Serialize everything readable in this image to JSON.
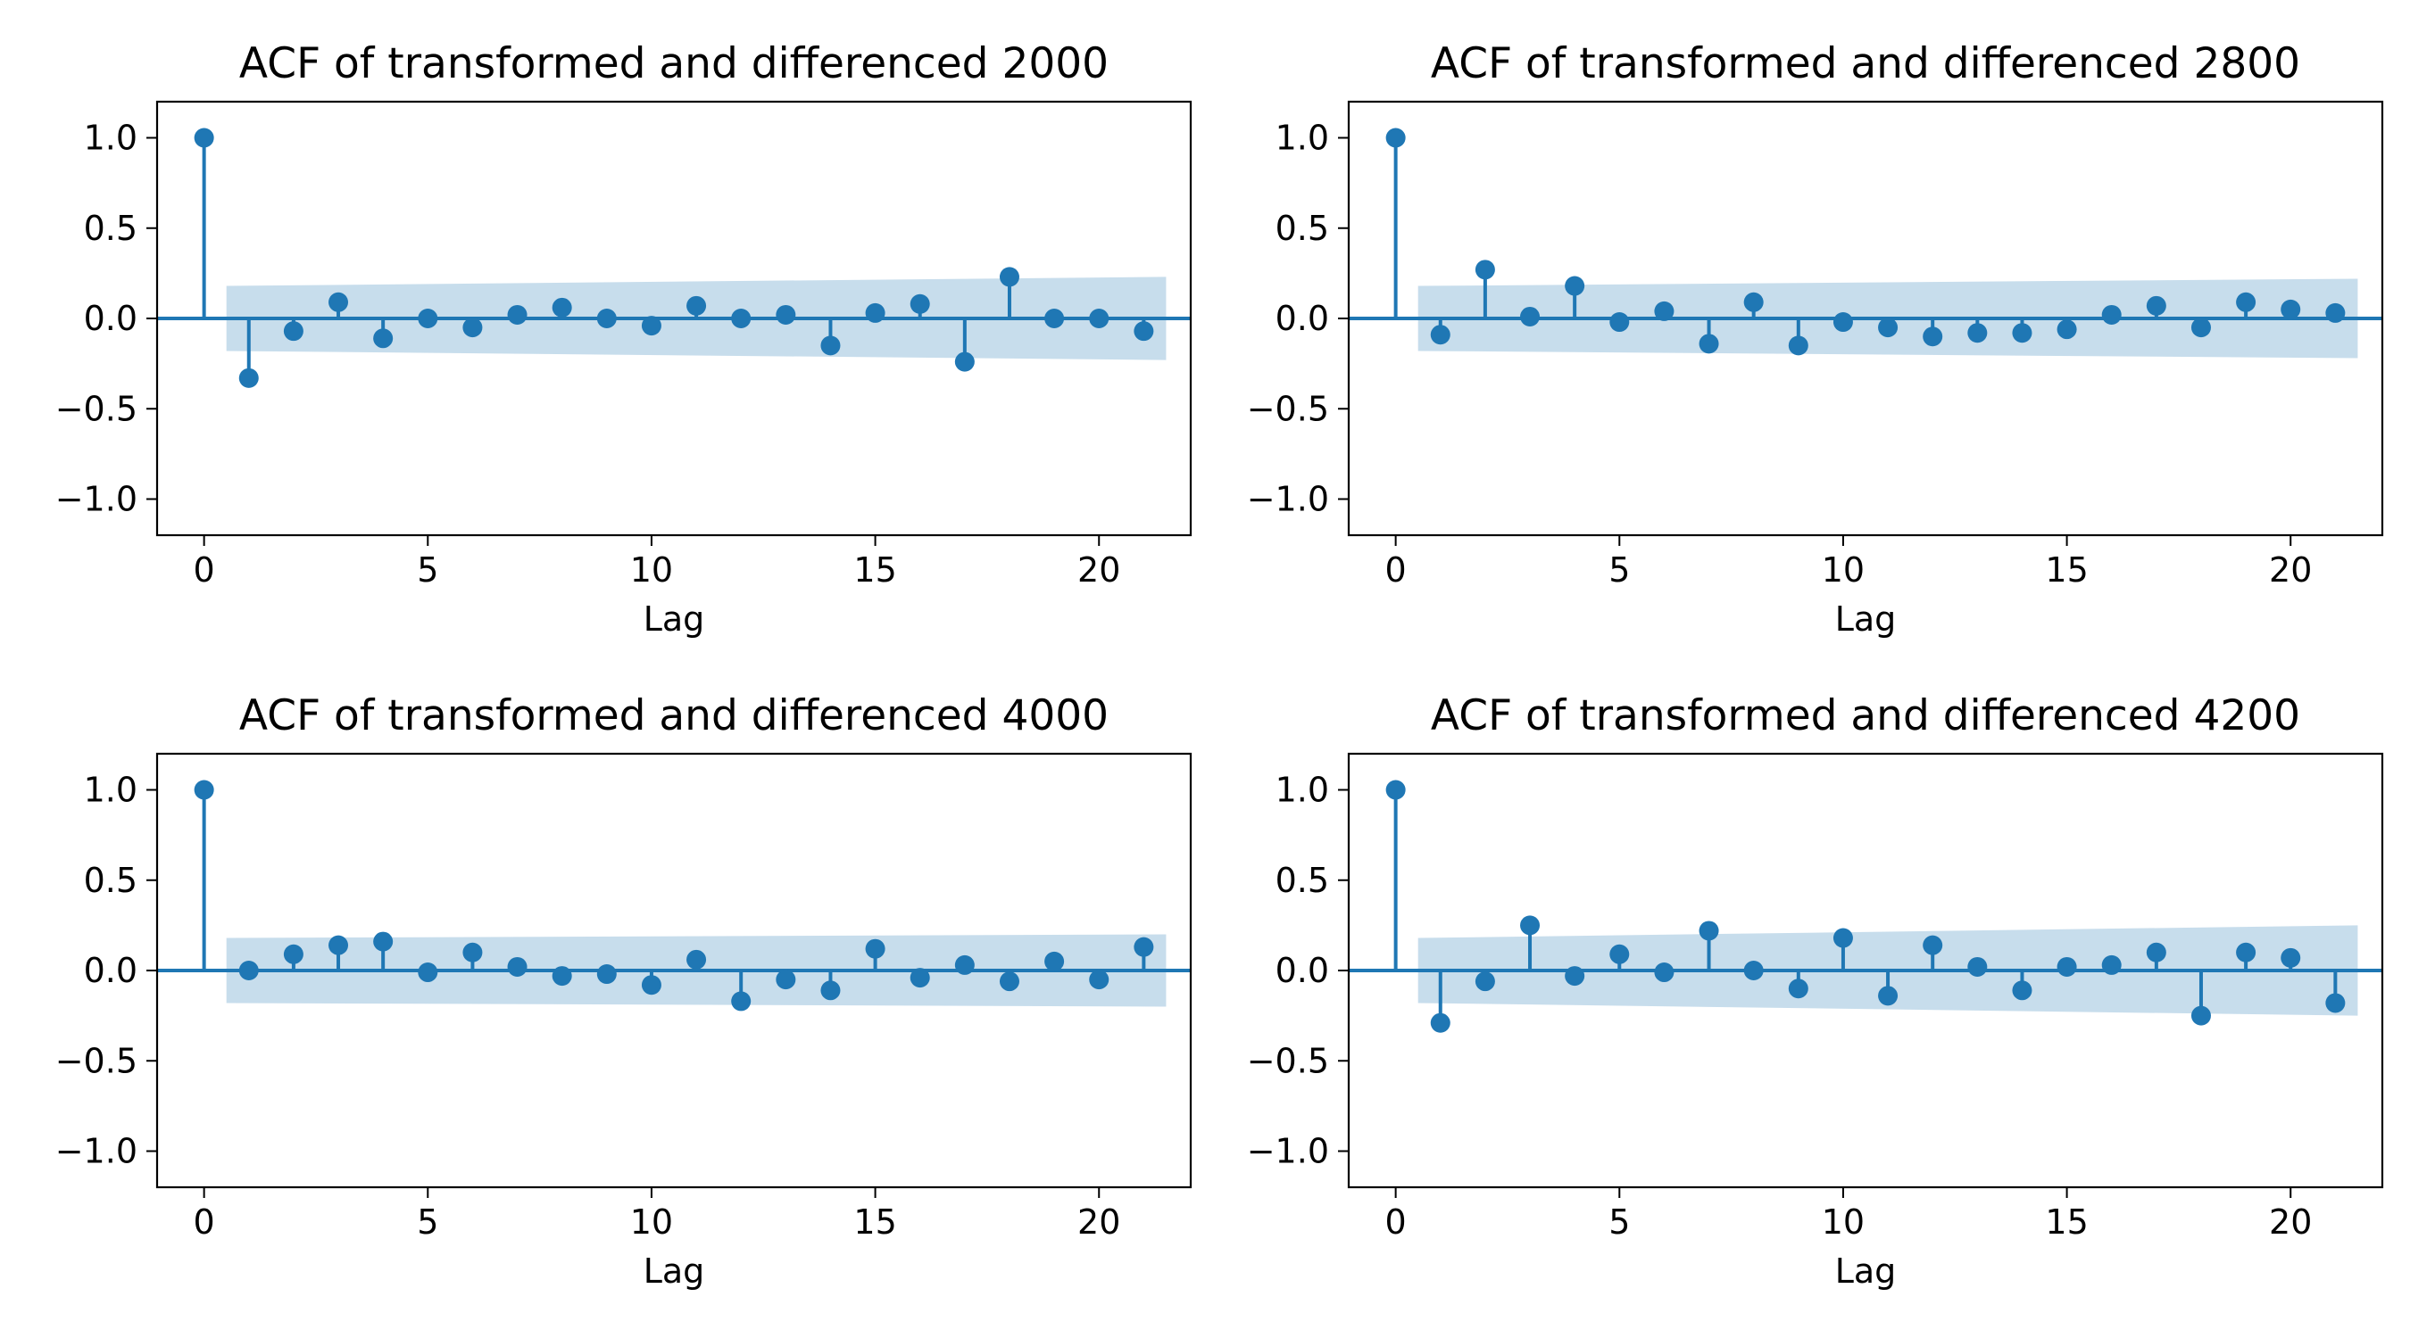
{
  "figure": {
    "colors": {
      "series": "#1f77b4",
      "confidence_band": "#1f77b4",
      "axes": "#000000",
      "background": "#ffffff"
    }
  },
  "chart_data": [
    {
      "type": "stem",
      "title": "ACF of transformed and differenced 2000",
      "xlabel": "Lag",
      "ylabel": "",
      "xlim": [
        -1.05,
        22.05
      ],
      "ylim": [
        -1.2,
        1.2
      ],
      "xticks": [
        0,
        5,
        10,
        15,
        20
      ],
      "yticks": [
        -1.0,
        -0.5,
        0.0,
        0.5,
        1.0
      ],
      "ytick_labels": [
        "−1.0",
        "−0.5",
        "0.0",
        "0.5",
        "1.0"
      ],
      "grid": false,
      "lags": [
        0,
        1,
        2,
        3,
        4,
        5,
        6,
        7,
        8,
        9,
        10,
        11,
        12,
        13,
        14,
        15,
        16,
        17,
        18,
        19,
        20,
        21
      ],
      "values": [
        1.0,
        -0.33,
        -0.07,
        0.09,
        -0.11,
        0.0,
        -0.05,
        0.02,
        0.06,
        0.0,
        -0.04,
        0.07,
        0.0,
        0.02,
        -0.15,
        0.03,
        0.08,
        -0.24,
        0.23,
        0.0,
        0.0,
        -0.07
      ],
      "confidence_band": {
        "from_lag": 0.5,
        "to_lag": 21.5,
        "half_width_start": 0.18,
        "half_width_end": 0.23
      }
    },
    {
      "type": "stem",
      "title": "ACF of transformed and differenced 2800",
      "xlabel": "Lag",
      "ylabel": "",
      "xlim": [
        -1.05,
        22.05
      ],
      "ylim": [
        -1.2,
        1.2
      ],
      "xticks": [
        0,
        5,
        10,
        15,
        20
      ],
      "yticks": [
        -1.0,
        -0.5,
        0.0,
        0.5,
        1.0
      ],
      "ytick_labels": [
        "−1.0",
        "−0.5",
        "0.0",
        "0.5",
        "1.0"
      ],
      "grid": false,
      "lags": [
        0,
        1,
        2,
        3,
        4,
        5,
        6,
        7,
        8,
        9,
        10,
        11,
        12,
        13,
        14,
        15,
        16,
        17,
        18,
        19,
        20,
        21
      ],
      "values": [
        1.0,
        -0.09,
        0.27,
        0.01,
        0.18,
        -0.02,
        0.04,
        -0.14,
        0.09,
        -0.15,
        -0.02,
        -0.05,
        -0.1,
        -0.08,
        -0.08,
        -0.06,
        0.02,
        0.07,
        -0.05,
        0.09,
        0.05,
        0.03
      ],
      "confidence_band": {
        "from_lag": 0.5,
        "to_lag": 21.5,
        "half_width_start": 0.18,
        "half_width_end": 0.22
      }
    },
    {
      "type": "stem",
      "title": "ACF of transformed and differenced 4000",
      "xlabel": "Lag",
      "ylabel": "",
      "xlim": [
        -1.05,
        22.05
      ],
      "ylim": [
        -1.2,
        1.2
      ],
      "xticks": [
        0,
        5,
        10,
        15,
        20
      ],
      "yticks": [
        -1.0,
        -0.5,
        0.0,
        0.5,
        1.0
      ],
      "ytick_labels": [
        "−1.0",
        "−0.5",
        "0.0",
        "0.5",
        "1.0"
      ],
      "grid": false,
      "lags": [
        0,
        1,
        2,
        3,
        4,
        5,
        6,
        7,
        8,
        9,
        10,
        11,
        12,
        13,
        14,
        15,
        16,
        17,
        18,
        19,
        20,
        21
      ],
      "values": [
        1.0,
        0.0,
        0.09,
        0.14,
        0.16,
        -0.01,
        0.1,
        0.02,
        -0.03,
        -0.02,
        -0.08,
        0.06,
        -0.17,
        -0.05,
        -0.11,
        0.12,
        -0.04,
        0.03,
        -0.06,
        0.05,
        -0.05,
        0.13
      ],
      "confidence_band": {
        "from_lag": 0.5,
        "to_lag": 21.5,
        "half_width_start": 0.18,
        "half_width_end": 0.2
      }
    },
    {
      "type": "stem",
      "title": "ACF of transformed and differenced 4200",
      "xlabel": "Lag",
      "ylabel": "",
      "xlim": [
        -1.05,
        22.05
      ],
      "ylim": [
        -1.2,
        1.2
      ],
      "xticks": [
        0,
        5,
        10,
        15,
        20
      ],
      "yticks": [
        -1.0,
        -0.5,
        0.0,
        0.5,
        1.0
      ],
      "ytick_labels": [
        "−1.0",
        "−0.5",
        "0.0",
        "0.5",
        "1.0"
      ],
      "grid": false,
      "lags": [
        0,
        1,
        2,
        3,
        4,
        5,
        6,
        7,
        8,
        9,
        10,
        11,
        12,
        13,
        14,
        15,
        16,
        17,
        18,
        19,
        20,
        21
      ],
      "values": [
        1.0,
        -0.29,
        -0.06,
        0.25,
        -0.03,
        0.09,
        -0.01,
        0.22,
        0.0,
        -0.1,
        0.18,
        -0.14,
        0.14,
        0.02,
        -0.11,
        0.02,
        0.03,
        0.1,
        -0.25,
        0.1,
        0.07,
        -0.18
      ],
      "confidence_band": {
        "from_lag": 0.5,
        "to_lag": 21.5,
        "half_width_start": 0.18,
        "half_width_end": 0.25
      }
    }
  ]
}
